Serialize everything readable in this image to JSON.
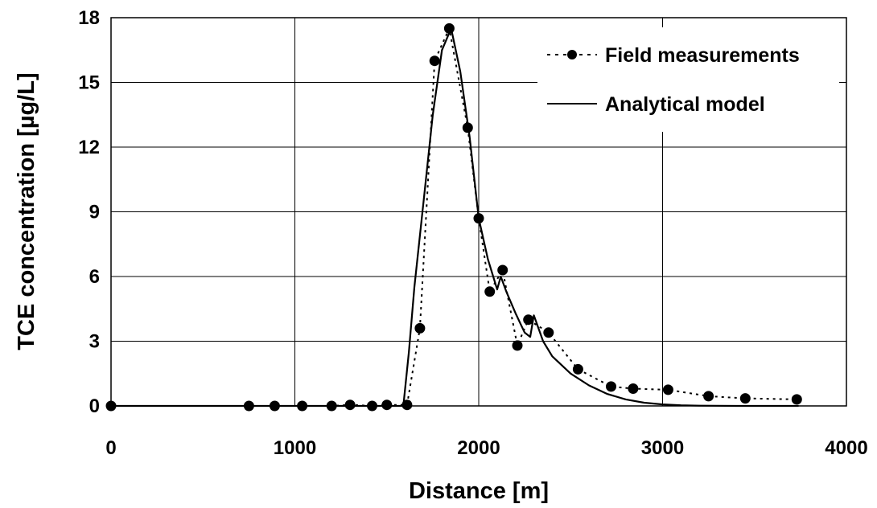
{
  "chart_data": {
    "type": "line",
    "xlabel": "Distance [m]",
    "ylabel": "TCE concentration [µg/L]",
    "xlim": [
      0,
      4000
    ],
    "ylim": [
      0,
      18
    ],
    "x_ticks": [
      "0",
      "1000",
      "2000",
      "3000",
      "4000"
    ],
    "y_ticks": [
      "0",
      "3",
      "6",
      "9",
      "12",
      "15",
      "18"
    ],
    "grid": true,
    "legend_position": "top-right",
    "series": [
      {
        "name": "Field measurements",
        "style": "dotted-line-with-markers",
        "color": "#000000",
        "x": [
          0,
          750,
          890,
          1040,
          1200,
          1300,
          1420,
          1500,
          1610,
          1680,
          1760,
          1840,
          1940,
          2000,
          2060,
          2130,
          2210,
          2270,
          2380,
          2540,
          2720,
          2840,
          3030,
          3250,
          3450,
          3730
        ],
        "y": [
          0,
          0,
          0,
          0,
          0,
          0.05,
          0,
          0.05,
          0.05,
          3.6,
          16.0,
          17.5,
          12.9,
          8.7,
          5.3,
          6.3,
          2.8,
          4.0,
          3.4,
          1.7,
          0.9,
          0.8,
          0.75,
          0.45,
          0.35,
          0.3
        ]
      },
      {
        "name": "Analytical model",
        "style": "solid-line",
        "color": "#000000",
        "x": [
          0,
          1590,
          1620,
          1650,
          1700,
          1750,
          1800,
          1850,
          1900,
          1950,
          2000,
          2050,
          2100,
          2120,
          2150,
          2200,
          2250,
          2280,
          2300,
          2350,
          2400,
          2500,
          2600,
          2700,
          2800,
          2900,
          3000,
          3100,
          3200,
          3400,
          3740
        ],
        "y": [
          0,
          0,
          2.5,
          5.5,
          9.5,
          13.5,
          16.5,
          17.5,
          15.5,
          12.5,
          8.7,
          6.8,
          5.4,
          6.0,
          5.3,
          4.3,
          3.4,
          3.2,
          4.2,
          3.0,
          2.3,
          1.5,
          0.95,
          0.55,
          0.3,
          0.15,
          0.07,
          0.03,
          0.01,
          0,
          0
        ]
      }
    ]
  }
}
